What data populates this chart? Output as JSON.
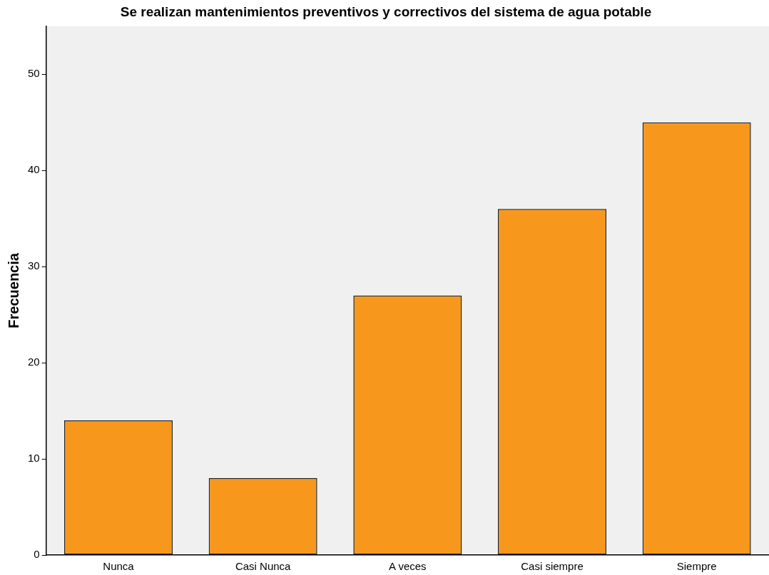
{
  "chart_data": {
    "type": "bar",
    "title": "Se realizan mantenimientos preventivos y correctivos del sistema de agua potable",
    "ylabel": "Frecuencia",
    "categories": [
      "Nunca",
      "Casi Nunca",
      "A veces",
      "Casi siempre",
      "Siempre"
    ],
    "values": [
      14,
      8,
      27,
      36,
      45
    ],
    "color": "#f7981d",
    "ylim": [
      0,
      55
    ],
    "yticks": [
      0,
      10,
      20,
      30,
      40,
      50
    ],
    "grid": false,
    "legend": false
  }
}
